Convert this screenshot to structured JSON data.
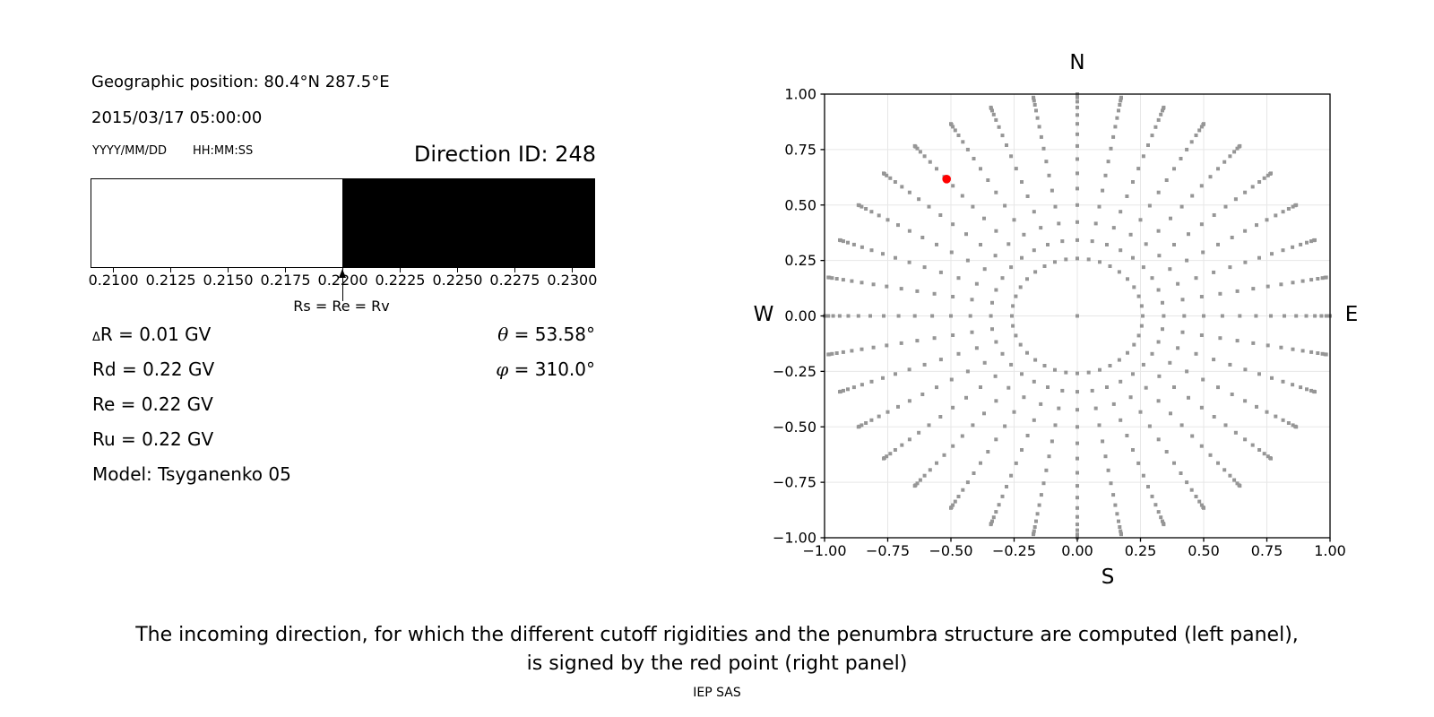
{
  "left_panel": {
    "geographic_position": "Geographic position: 80.4°N 287.5°E",
    "datetime": "2015/03/17 05:00:00",
    "date_format_label": "YYYY/MM/DD",
    "time_format_label": "HH:MM:SS",
    "direction_id": "Direction ID: 248",
    "delta_r": {
      "symbol": "Δ",
      "rest": "R = 0.01 GV"
    },
    "rigidity_values": [
      "Rd = 0.22 GV",
      "Re = 0.22 GV",
      "Ru = 0.22 GV"
    ],
    "model": "Model: Tsyganenko 05",
    "theta": {
      "symbol": "θ",
      "rest": " = 53.58°"
    },
    "phi": {
      "symbol": "φ",
      "rest": " = 310.0°"
    }
  },
  "caption": {
    "line1": "The incoming direction, for which the different cutoff rigidities and the penumbra structure are computed (left panel),",
    "line2": "is signed by the red point (right panel)",
    "credit": "IEP SAS"
  },
  "chart_data": [
    {
      "type": "bar",
      "name": "penumbra-structure-strip",
      "xlim": [
        0.209,
        0.231
      ],
      "x_ticks": [
        0.21,
        0.2125,
        0.215,
        0.2175,
        0.22,
        0.2225,
        0.225,
        0.2275,
        0.23
      ],
      "x_tick_labels": [
        "0.2100",
        "0.2125",
        "0.2150",
        "0.2175",
        "0.2200",
        "0.2225",
        "0.2250",
        "0.2275",
        "0.2300"
      ],
      "segments": [
        {
          "x_from": 0.209,
          "x_to": 0.22,
          "color": "#ffffff"
        },
        {
          "x_from": 0.22,
          "x_to": 0.231,
          "color": "#000000"
        }
      ],
      "annotation": {
        "text": "Rs = Re = Rv",
        "x": 0.22
      }
    },
    {
      "type": "scatter",
      "name": "incoming-direction-sky-map",
      "xlim": [
        -1.0,
        1.0
      ],
      "ylim": [
        -1.0,
        1.0
      ],
      "x_ticks": [
        -1.0,
        -0.75,
        -0.5,
        -0.25,
        0.0,
        0.25,
        0.5,
        0.75,
        1.0
      ],
      "x_tick_labels": [
        "−1.00",
        "−0.75",
        "−0.50",
        "−0.25",
        "0.00",
        "0.25",
        "0.50",
        "0.75",
        "1.00"
      ],
      "y_ticks": [
        1.0,
        0.75,
        0.5,
        0.25,
        0.0,
        -0.25,
        -0.5,
        -0.75,
        -1.0
      ],
      "y_tick_labels": [
        "1.00",
        "0.75",
        "0.50",
        "0.25",
        "0.00",
        "−0.25",
        "−0.50",
        "−0.75",
        "−1.00"
      ],
      "grid": true,
      "compass": {
        "north": "N",
        "south": "S",
        "west": "W",
        "east": "E"
      },
      "direction_grid": {
        "azimuth_start_deg": 0,
        "azimuth_step_deg": 10,
        "azimuth_count": 36,
        "radii": [
          0.259,
          0.342,
          0.423,
          0.5,
          0.574,
          0.643,
          0.707,
          0.766,
          0.819,
          0.866,
          0.906,
          0.94,
          0.966,
          0.985,
          0.996,
          1.0
        ],
        "includes_center_point": true,
        "dot_color": "#969696"
      },
      "red_point": {
        "x": -0.517,
        "y": 0.617,
        "color": "#ff0000",
        "theta_deg": 53.58,
        "phi_deg": 310.0
      }
    }
  ]
}
